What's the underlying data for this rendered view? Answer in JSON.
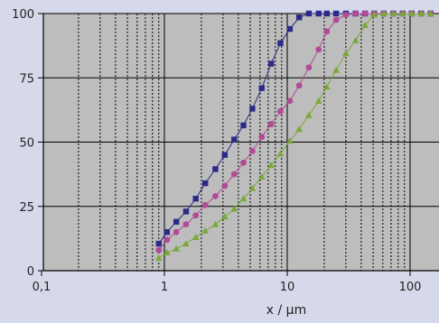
{
  "chart_data": {
    "type": "line",
    "xlabel": "x / µm",
    "ylabel": "",
    "xscale": "log",
    "xlim": [
      0.1,
      200
    ],
    "ylim": [
      0,
      100
    ],
    "grid": "major y lines, dashed minor x lines, solid major x lines",
    "x_tick_labels": [
      "0,1",
      "1",
      "10",
      "100"
    ],
    "y_tick_labels": [
      "0",
      "25",
      "50",
      "75",
      "100"
    ],
    "series": [
      {
        "color": "#2b2a86",
        "marker": "square",
        "x": [
          0.9,
          1.05,
          1.25,
          1.5,
          1.8,
          2.15,
          2.6,
          3.1,
          3.7,
          4.4,
          5.2,
          6.2,
          7.4,
          8.8,
          10.5,
          12.5,
          15,
          18,
          21,
          25,
          30,
          36,
          43,
          51,
          61,
          73,
          87,
          103,
          123,
          147,
          175,
          200
        ],
        "values": [
          10.5,
          15,
          19,
          23,
          28,
          34,
          39.5,
          45,
          51,
          56.5,
          63,
          71,
          80.5,
          88.5,
          94,
          98.5,
          100,
          100,
          100,
          100,
          100,
          100,
          100,
          100,
          100,
          100,
          100,
          100,
          100,
          100,
          100,
          100
        ]
      },
      {
        "color": "#b24a96",
        "marker": "circle",
        "x": [
          0.9,
          1.05,
          1.25,
          1.5,
          1.8,
          2.15,
          2.6,
          3.1,
          3.7,
          4.4,
          5.2,
          6.2,
          7.4,
          8.8,
          10.5,
          12.5,
          15,
          18,
          21,
          25,
          30,
          36,
          43,
          51,
          61,
          73,
          87,
          103,
          123,
          147,
          175,
          200
        ],
        "values": [
          8,
          12,
          15,
          18,
          21.5,
          25.5,
          29,
          33,
          37.5,
          42,
          46.5,
          52,
          57,
          62,
          66,
          72,
          79,
          86,
          93,
          97.5,
          99.5,
          100,
          100,
          100,
          100,
          100,
          100,
          100,
          100,
          100,
          100,
          100
        ]
      },
      {
        "color": "#7aa83a",
        "marker": "triangle",
        "x": [
          0.9,
          1.05,
          1.25,
          1.5,
          1.8,
          2.15,
          2.6,
          3.1,
          3.7,
          4.4,
          5.2,
          6.2,
          7.4,
          8.8,
          10.5,
          12.5,
          15,
          18,
          21,
          25,
          30,
          36,
          43,
          51,
          61,
          73,
          87,
          103,
          123,
          147,
          175,
          200
        ],
        "values": [
          5,
          7,
          8.5,
          10.5,
          13,
          15.5,
          18,
          21,
          24,
          28,
          32,
          36.5,
          41,
          45.5,
          50.5,
          55,
          60.5,
          66,
          71.5,
          78,
          84.5,
          89.5,
          95.5,
          99.5,
          100,
          100,
          100,
          100,
          100,
          100,
          100,
          100
        ]
      }
    ]
  }
}
